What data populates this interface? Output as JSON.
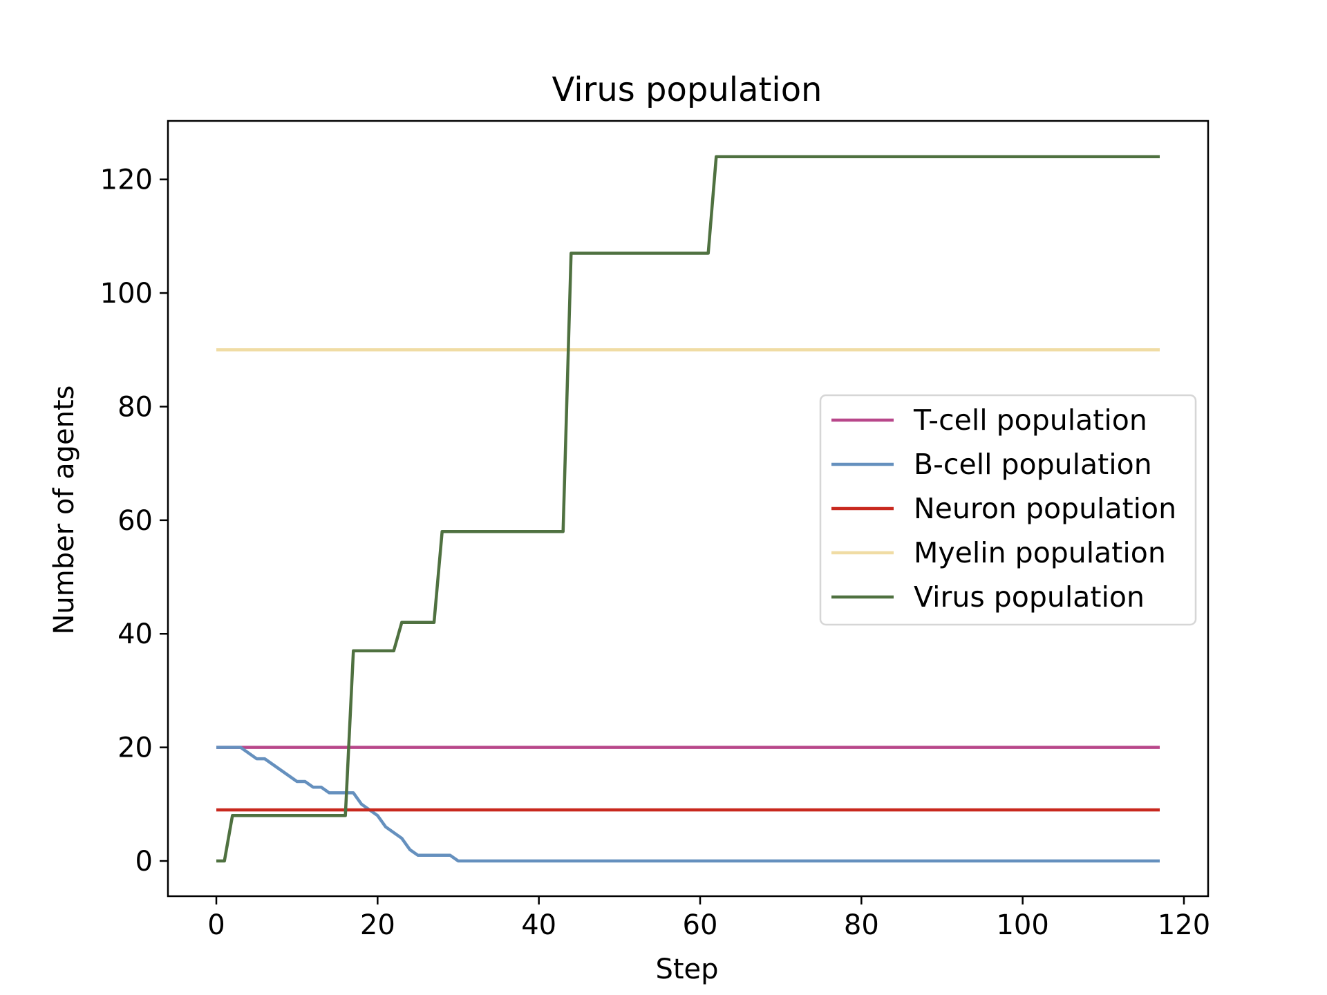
{
  "chart_data": {
    "type": "line",
    "title": "Virus population",
    "xlabel": "Step",
    "ylabel": "Number of agents",
    "xlim": [
      -6,
      123
    ],
    "ylim": [
      -6.2,
      130.3
    ],
    "xticks": [
      0,
      20,
      40,
      60,
      80,
      100,
      120
    ],
    "yticks": [
      0,
      20,
      40,
      60,
      80,
      100,
      120
    ],
    "grid": false,
    "legend_position": "center-right",
    "series": [
      {
        "name": "T-cell population",
        "color": "#b8478a",
        "points": [
          [
            0,
            20
          ],
          [
            117,
            20
          ]
        ]
      },
      {
        "name": "B-cell population",
        "color": "#6590be",
        "points": [
          [
            0,
            20
          ],
          [
            3,
            20
          ],
          [
            5,
            18
          ],
          [
            6,
            18
          ],
          [
            10,
            14
          ],
          [
            11,
            14
          ],
          [
            12,
            13
          ],
          [
            13,
            13
          ],
          [
            14,
            12
          ],
          [
            17,
            12
          ],
          [
            18,
            10
          ],
          [
            20,
            8
          ],
          [
            21,
            6
          ],
          [
            23,
            4
          ],
          [
            24,
            2
          ],
          [
            25,
            1
          ],
          [
            29,
            1
          ],
          [
            30,
            0
          ],
          [
            117,
            0
          ]
        ]
      },
      {
        "name": "Neuron population",
        "color": "#c8281e",
        "points": [
          [
            0,
            9
          ],
          [
            117,
            9
          ]
        ]
      },
      {
        "name": "Myelin population",
        "color": "#f0dca4",
        "points": [
          [
            0,
            90
          ],
          [
            117,
            90
          ]
        ]
      },
      {
        "name": "Virus population",
        "color": "#4f7140",
        "points": [
          [
            0,
            0
          ],
          [
            1,
            0
          ],
          [
            2,
            8
          ],
          [
            16,
            8
          ],
          [
            17,
            37
          ],
          [
            22,
            37
          ],
          [
            23,
            42
          ],
          [
            27,
            42
          ],
          [
            28,
            58
          ],
          [
            43,
            58
          ],
          [
            44,
            107
          ],
          [
            61,
            107
          ],
          [
            62,
            124
          ],
          [
            117,
            124
          ]
        ]
      }
    ]
  }
}
